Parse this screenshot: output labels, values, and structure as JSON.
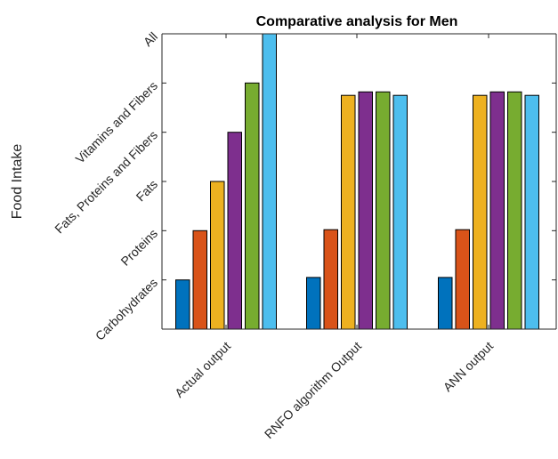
{
  "chart_data": {
    "type": "bar",
    "title": "Comparative analysis for Men",
    "xlabel": "",
    "ylabel": "Food Intake",
    "categories": [
      "Actual output",
      "RNFO algorithm Output",
      "ANN output"
    ],
    "y_tick_labels": [
      "Carbohydrates",
      "Proteins",
      "Fats",
      "Fats, Proteins and Fibers",
      "Vitamins and Fibers",
      "All"
    ],
    "ylim": [
      0,
      6
    ],
    "grid": false,
    "legend": "none",
    "series_colors": [
      "#0072BD",
      "#D95319",
      "#EDB120",
      "#7E2F8E",
      "#77AC30",
      "#4DBEEE"
    ],
    "series": [
      {
        "values": [
          1.0,
          1.05,
          1.05
        ]
      },
      {
        "values": [
          2.0,
          2.02,
          2.02
        ]
      },
      {
        "values": [
          3.0,
          4.75,
          4.75
        ]
      },
      {
        "values": [
          4.0,
          4.82,
          4.82
        ]
      },
      {
        "values": [
          5.0,
          4.82,
          4.82
        ]
      },
      {
        "values": [
          6.0,
          4.75,
          4.75
        ]
      }
    ]
  }
}
